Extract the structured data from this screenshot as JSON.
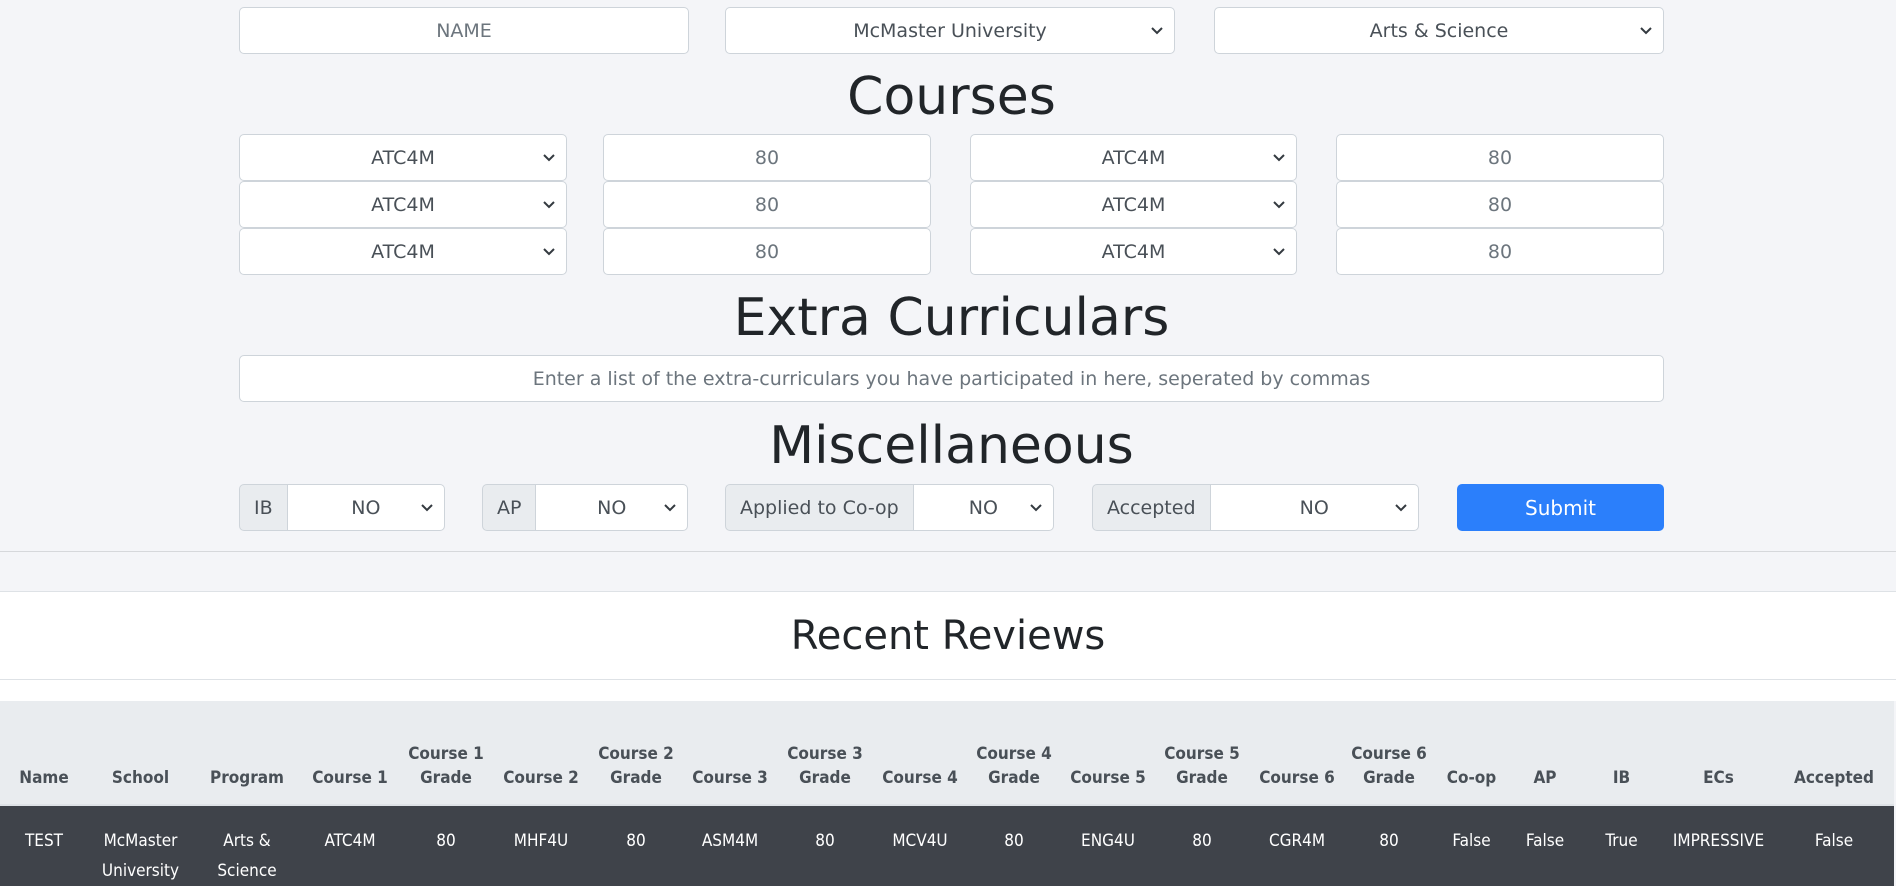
{
  "top": {
    "name_placeholder": "NAME",
    "school": "McMaster University",
    "program": "Arts & Science"
  },
  "courses": {
    "heading": "Courses",
    "rows": [
      {
        "c1": "ATC4M",
        "g1": "80",
        "c2": "ATC4M",
        "g2": "80"
      },
      {
        "c1": "ATC4M",
        "g1": "80",
        "c2": "ATC4M",
        "g2": "80"
      },
      {
        "c1": "ATC4M",
        "g1": "80",
        "c2": "ATC4M",
        "g2": "80"
      }
    ]
  },
  "ec": {
    "heading": "Extra Curriculars",
    "placeholder": "Enter a list of the extra-curriculars you have participated in here, seperated by commas"
  },
  "misc": {
    "heading": "Miscellaneous",
    "ib_label": "IB",
    "ib": "NO",
    "ap_label": "AP",
    "ap": "NO",
    "coop_label": "Applied to Co-op",
    "coop": "NO",
    "accepted_label": "Accepted",
    "accepted": "NO",
    "submit": "Submit"
  },
  "reviews": {
    "title": "Recent Reviews",
    "headers": [
      "Name",
      "School",
      "Program",
      "Course 1",
      "Course 1 Grade",
      "Course 2",
      "Course 2 Grade",
      "Course 3",
      "Course 3 Grade",
      "Course 4",
      "Course 4 Grade",
      "Course 5",
      "Course 5 Grade",
      "Course 6",
      "Course 6 Grade",
      "Co-op",
      "AP",
      "IB",
      "ECs",
      "Accepted"
    ],
    "rows": [
      [
        "TEST",
        "McMaster University",
        "Arts & Science",
        "ATC4M",
        "80",
        "MHF4U",
        "80",
        "ASM4M",
        "80",
        "MCV4U",
        "80",
        "ENG4U",
        "80",
        "CGR4M",
        "80",
        "False",
        "False",
        "True",
        "IMPRESSIVE",
        "False"
      ]
    ]
  },
  "colors": {
    "primary": "#2b7ffb",
    "row_dark": "#3f434a",
    "header_bg": "#e9ecef"
  }
}
